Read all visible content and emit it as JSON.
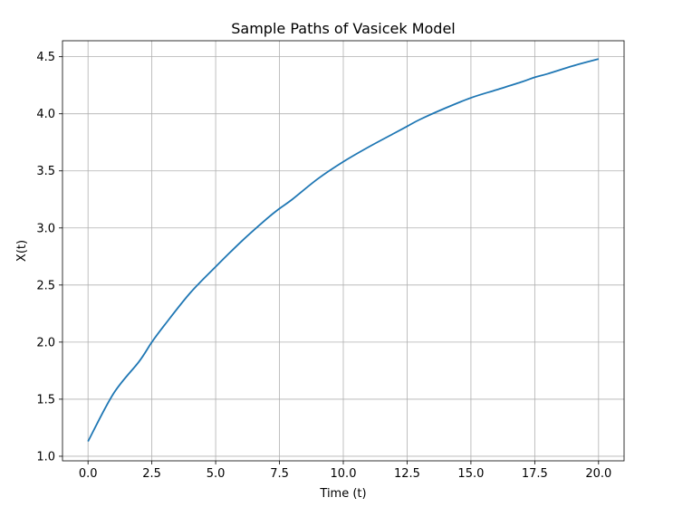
{
  "chart_data": {
    "type": "line",
    "title": "Sample Paths of Vasicek Model",
    "xlabel": "Time (t)",
    "ylabel": "X(t)",
    "xlim": [
      -1.0,
      21.0
    ],
    "ylim": [
      0.96,
      4.64
    ],
    "grid": true,
    "x_ticks": [
      0.0,
      2.5,
      5.0,
      7.5,
      10.0,
      12.5,
      15.0,
      17.5,
      20.0
    ],
    "x_tick_labels": [
      "0.0",
      "2.5",
      "5.0",
      "7.5",
      "10.0",
      "12.5",
      "15.0",
      "17.5",
      "20.0"
    ],
    "y_ticks": [
      1.0,
      1.5,
      2.0,
      2.5,
      3.0,
      3.5,
      4.0,
      4.5
    ],
    "y_tick_labels": [
      "1.0",
      "1.5",
      "2.0",
      "2.5",
      "3.0",
      "3.5",
      "4.0",
      "4.5"
    ],
    "series_color": "#1f77b4",
    "series": [
      {
        "x": [
          0.0,
          1.0,
          2.0,
          2.5,
          3.0,
          4.0,
          5.0,
          6.0,
          7.0,
          7.5,
          8.0,
          9.0,
          10.0,
          11.0,
          12.0,
          12.5,
          13.0,
          14.0,
          15.0,
          16.0,
          17.0,
          17.5,
          18.0,
          19.0,
          20.0
        ],
        "values": [
          1.13,
          1.55,
          1.83,
          2.0,
          2.15,
          2.43,
          2.66,
          2.88,
          3.08,
          3.17,
          3.25,
          3.43,
          3.58,
          3.71,
          3.83,
          3.89,
          3.95,
          4.05,
          4.14,
          4.21,
          4.28,
          4.32,
          4.35,
          4.42,
          4.48
        ]
      }
    ]
  }
}
